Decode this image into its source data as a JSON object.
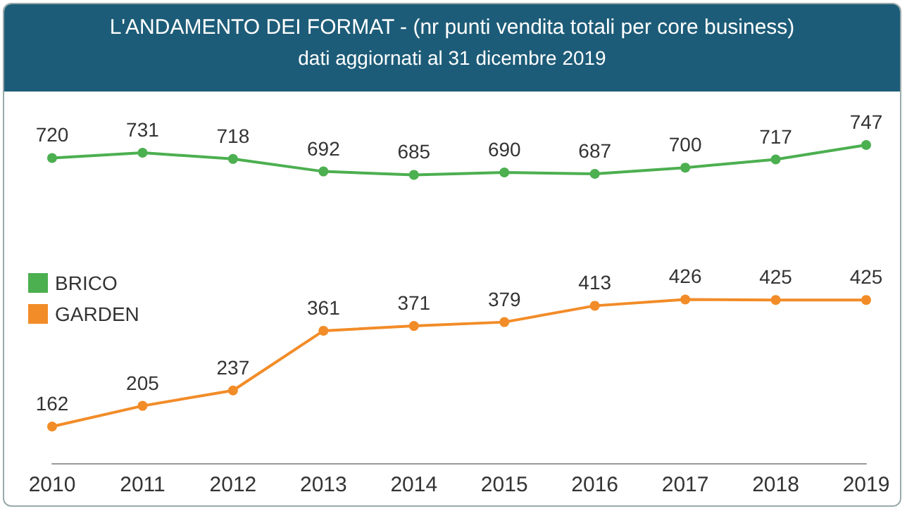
{
  "chart_data": {
    "type": "line",
    "title": "L'ANDAMENTO DEI FORMAT - (nr punti vendita totali per core business)",
    "subtitle": "dati aggiornati al 31 dicembre 2019",
    "categories": [
      "2010",
      "2011",
      "2012",
      "2013",
      "2014",
      "2015",
      "2016",
      "2017",
      "2018",
      "2019"
    ],
    "series": [
      {
        "name": "BRICO",
        "color": "#4caf50",
        "values": [
          720,
          731,
          718,
          692,
          685,
          690,
          687,
          700,
          717,
          747
        ]
      },
      {
        "name": "GARDEN",
        "color": "#f28c28",
        "values": [
          162,
          205,
          237,
          361,
          371,
          379,
          413,
          426,
          425,
          425
        ]
      }
    ],
    "data_labels": true,
    "marker": "circle",
    "line_style": "solid",
    "legend": "left",
    "grid": false
  }
}
